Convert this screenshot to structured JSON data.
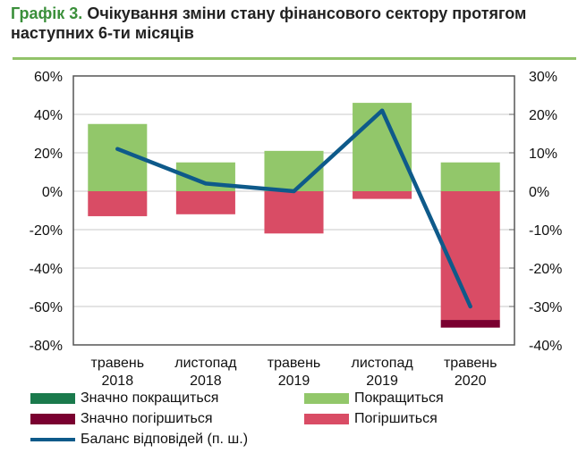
{
  "title": {
    "lead": "Графік 3.",
    "text": "Очікування зміни стану фінансового сектору протягом наступних 6-ти місяців"
  },
  "chart_data": {
    "type": "bar",
    "categories": [
      [
        "травень",
        "2018"
      ],
      [
        "листопад",
        "2018"
      ],
      [
        "травень",
        "2019"
      ],
      [
        "листопад",
        "2019"
      ],
      [
        "травень",
        "2020"
      ]
    ],
    "left_axis": {
      "ylim": [
        -80,
        60
      ],
      "ticks": [
        "60%",
        "40%",
        "20%",
        "0%",
        "-20%",
        "-40%",
        "-60%",
        "-80%"
      ],
      "tick_values": [
        60,
        40,
        20,
        0,
        -20,
        -40,
        -60,
        -80
      ]
    },
    "right_axis": {
      "ylim": [
        -40,
        30
      ],
      "ticks": [
        "30%",
        "20%",
        "10%",
        "0%",
        "-10%",
        "-20%",
        "-30%",
        "-40%"
      ],
      "tick_values": [
        30,
        20,
        10,
        0,
        -10,
        -20,
        -30,
        -40
      ]
    },
    "grid": true,
    "legend_placement": "bottom",
    "series": [
      {
        "name": "Значно покращиться",
        "type": "stacked-bar",
        "axis": "left",
        "color": "#1a7a4c",
        "values": [
          0,
          0,
          0,
          0,
          0
        ]
      },
      {
        "name": "Покращиться",
        "type": "stacked-bar",
        "axis": "left",
        "color": "#92c76a",
        "values": [
          35,
          15,
          21,
          46,
          15
        ]
      },
      {
        "name": "Значно погіршиться",
        "type": "stacked-bar",
        "axis": "left",
        "color": "#7a0030",
        "values": [
          0,
          0,
          0,
          0,
          -4
        ]
      },
      {
        "name": "Погіршиться",
        "type": "stacked-bar",
        "axis": "left",
        "color": "#d94c65",
        "values": [
          -13,
          -12,
          -22,
          -4,
          -67
        ]
      },
      {
        "name": "Баланс відповідей (п. ш.)",
        "type": "line",
        "axis": "right",
        "color": "#0e5a8a",
        "values": [
          11,
          2,
          0,
          21,
          -30
        ]
      }
    ]
  }
}
